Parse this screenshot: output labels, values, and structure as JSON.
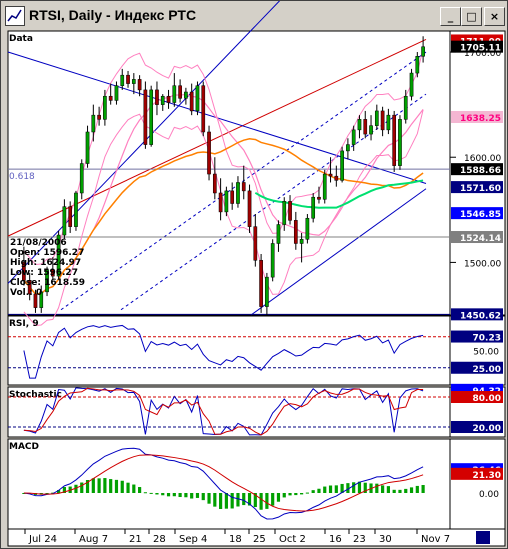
{
  "window": {
    "title": "RTSI, Daily - Индекс РТС",
    "minimize_label": "_",
    "maximize_label": "□",
    "close_label": "×"
  },
  "chart_data": [
    {
      "type": "candlestick",
      "panel": "Data",
      "title": "Data",
      "y_ticks": [
        1700,
        1600,
        1500
      ],
      "price_labels": [
        {
          "text": "1711.00",
          "value": 1711.0,
          "bg": "#d40000",
          "fg": "#ffffff"
        },
        {
          "text": "1705.11",
          "value": 1705.11,
          "bg": "#000000",
          "fg": "#ffffff"
        },
        {
          "text": "1638.25",
          "value": 1638.25,
          "bg": "#f4b6d2",
          "fg": "#ff0080"
        },
        {
          "text": "1588.66",
          "value": 1588.66,
          "bg": "#000000",
          "fg": "#ffffff"
        },
        {
          "text": "1571.60",
          "value": 1571.6,
          "bg": "#000080",
          "fg": "#ffffff"
        },
        {
          "text": "1546.85",
          "value": 1546.85,
          "bg": "#0000ff",
          "fg": "#ffffff"
        },
        {
          "text": "1524.14",
          "value": 1524.14,
          "bg": "#808080",
          "fg": "#ffffff"
        },
        {
          "text": "1450.62",
          "value": 1450.62,
          "bg": "#000080",
          "fg": "#ffffff"
        }
      ],
      "fib_label": "0.618",
      "info": {
        "date": "21/08/2006",
        "open": "Open: 1596.27",
        "high": "High: 1624.97",
        "low": "Low: 1596.27",
        "close": "Close: 1618.59",
        "vol": "Vol.: 0"
      },
      "ohlc": [
        {
          "o": 1500,
          "h": 1515,
          "l": 1478,
          "c": 1483
        },
        {
          "o": 1483,
          "h": 1490,
          "l": 1464,
          "c": 1470
        },
        {
          "o": 1470,
          "h": 1474,
          "l": 1452,
          "c": 1457
        },
        {
          "o": 1457,
          "h": 1478,
          "l": 1452,
          "c": 1472
        },
        {
          "o": 1472,
          "h": 1496,
          "l": 1468,
          "c": 1493
        },
        {
          "o": 1493,
          "h": 1505,
          "l": 1484,
          "c": 1487
        },
        {
          "o": 1487,
          "h": 1530,
          "l": 1484,
          "c": 1526
        },
        {
          "o": 1526,
          "h": 1560,
          "l": 1522,
          "c": 1553
        },
        {
          "o": 1553,
          "h": 1558,
          "l": 1528,
          "c": 1534
        },
        {
          "o": 1534,
          "h": 1568,
          "l": 1530,
          "c": 1566
        },
        {
          "o": 1566,
          "h": 1598,
          "l": 1560,
          "c": 1594
        },
        {
          "o": 1594,
          "h": 1630,
          "l": 1590,
          "c": 1624
        },
        {
          "o": 1624,
          "h": 1650,
          "l": 1615,
          "c": 1640
        },
        {
          "o": 1640,
          "h": 1648,
          "l": 1630,
          "c": 1636
        },
        {
          "o": 1636,
          "h": 1664,
          "l": 1630,
          "c": 1658
        },
        {
          "o": 1658,
          "h": 1670,
          "l": 1650,
          "c": 1654
        },
        {
          "o": 1654,
          "h": 1672,
          "l": 1650,
          "c": 1668
        },
        {
          "o": 1668,
          "h": 1684,
          "l": 1664,
          "c": 1678
        },
        {
          "o": 1678,
          "h": 1682,
          "l": 1666,
          "c": 1670
        },
        {
          "o": 1670,
          "h": 1680,
          "l": 1660,
          "c": 1674
        },
        {
          "o": 1674,
          "h": 1678,
          "l": 1658,
          "c": 1664
        },
        {
          "o": 1664,
          "h": 1672,
          "l": 1608,
          "c": 1612
        },
        {
          "o": 1612,
          "h": 1668,
          "l": 1610,
          "c": 1664
        },
        {
          "o": 1664,
          "h": 1672,
          "l": 1640,
          "c": 1650
        },
        {
          "o": 1650,
          "h": 1660,
          "l": 1644,
          "c": 1658
        },
        {
          "o": 1658,
          "h": 1664,
          "l": 1646,
          "c": 1652
        },
        {
          "o": 1652,
          "h": 1680,
          "l": 1648,
          "c": 1668
        },
        {
          "o": 1668,
          "h": 1674,
          "l": 1652,
          "c": 1656
        },
        {
          "o": 1656,
          "h": 1666,
          "l": 1650,
          "c": 1662
        },
        {
          "o": 1662,
          "h": 1670,
          "l": 1640,
          "c": 1644
        },
        {
          "o": 1644,
          "h": 1672,
          "l": 1640,
          "c": 1668
        },
        {
          "o": 1668,
          "h": 1672,
          "l": 1620,
          "c": 1624
        },
        {
          "o": 1624,
          "h": 1630,
          "l": 1578,
          "c": 1584
        },
        {
          "o": 1584,
          "h": 1600,
          "l": 1560,
          "c": 1566
        },
        {
          "o": 1566,
          "h": 1580,
          "l": 1540,
          "c": 1548
        },
        {
          "o": 1548,
          "h": 1572,
          "l": 1544,
          "c": 1568
        },
        {
          "o": 1568,
          "h": 1576,
          "l": 1550,
          "c": 1556
        },
        {
          "o": 1556,
          "h": 1582,
          "l": 1552,
          "c": 1576
        },
        {
          "o": 1576,
          "h": 1592,
          "l": 1560,
          "c": 1568
        },
        {
          "o": 1568,
          "h": 1574,
          "l": 1528,
          "c": 1534
        },
        {
          "o": 1534,
          "h": 1546,
          "l": 1496,
          "c": 1502
        },
        {
          "o": 1502,
          "h": 1508,
          "l": 1452,
          "c": 1458
        },
        {
          "o": 1458,
          "h": 1490,
          "l": 1450,
          "c": 1486
        },
        {
          "o": 1486,
          "h": 1522,
          "l": 1482,
          "c": 1518
        },
        {
          "o": 1518,
          "h": 1540,
          "l": 1510,
          "c": 1536
        },
        {
          "o": 1536,
          "h": 1562,
          "l": 1530,
          "c": 1558
        },
        {
          "o": 1558,
          "h": 1564,
          "l": 1536,
          "c": 1540
        },
        {
          "o": 1540,
          "h": 1548,
          "l": 1512,
          "c": 1518
        },
        {
          "o": 1518,
          "h": 1528,
          "l": 1500,
          "c": 1522
        },
        {
          "o": 1522,
          "h": 1546,
          "l": 1518,
          "c": 1542
        },
        {
          "o": 1542,
          "h": 1566,
          "l": 1538,
          "c": 1562
        },
        {
          "o": 1562,
          "h": 1572,
          "l": 1556,
          "c": 1560
        },
        {
          "o": 1560,
          "h": 1588,
          "l": 1556,
          "c": 1584
        },
        {
          "o": 1584,
          "h": 1600,
          "l": 1576,
          "c": 1582
        },
        {
          "o": 1582,
          "h": 1592,
          "l": 1572,
          "c": 1578
        },
        {
          "o": 1578,
          "h": 1610,
          "l": 1576,
          "c": 1606
        },
        {
          "o": 1606,
          "h": 1618,
          "l": 1598,
          "c": 1612
        },
        {
          "o": 1612,
          "h": 1630,
          "l": 1606,
          "c": 1626
        },
        {
          "o": 1626,
          "h": 1640,
          "l": 1618,
          "c": 1636
        },
        {
          "o": 1636,
          "h": 1644,
          "l": 1618,
          "c": 1622
        },
        {
          "o": 1622,
          "h": 1640,
          "l": 1616,
          "c": 1630
        },
        {
          "o": 1630,
          "h": 1650,
          "l": 1626,
          "c": 1644
        },
        {
          "o": 1644,
          "h": 1648,
          "l": 1620,
          "c": 1626
        },
        {
          "o": 1626,
          "h": 1646,
          "l": 1622,
          "c": 1640
        },
        {
          "o": 1640,
          "h": 1644,
          "l": 1586,
          "c": 1592
        },
        {
          "o": 1592,
          "h": 1640,
          "l": 1588,
          "c": 1636
        },
        {
          "o": 1636,
          "h": 1664,
          "l": 1632,
          "c": 1658
        },
        {
          "o": 1658,
          "h": 1684,
          "l": 1654,
          "c": 1680
        },
        {
          "o": 1680,
          "h": 1700,
          "l": 1676,
          "c": 1696
        },
        {
          "o": 1696,
          "h": 1715,
          "l": 1690,
          "c": 1705
        }
      ],
      "x_tick_labels": [
        "Jul 24",
        "Aug 7",
        "21",
        "28",
        "Sep 4",
        "18",
        "25",
        "Oct 2",
        "16",
        "23",
        "30",
        "Nov 7"
      ],
      "y_range": [
        1450,
        1720
      ]
    },
    {
      "type": "line",
      "panel": "RSI",
      "title": "RSI, 9",
      "y_ticks": [
        50.0
      ],
      "labels": [
        {
          "text": "70.23",
          "value": 70.23,
          "bg": "#000080",
          "fg": "#ffffff"
        },
        {
          "text": "25.00",
          "value": 25.0,
          "bg": "#000080",
          "fg": "#ffffff"
        }
      ],
      "y_range": [
        0,
        100
      ]
    },
    {
      "type": "line",
      "panel": "Stochastic",
      "title": "Stochastic",
      "labels": [
        {
          "text": "94.32",
          "value": 94.32,
          "bg": "#0000ff",
          "fg": "#ffffff"
        },
        {
          "text": "80.00",
          "value": 80.0,
          "bg": "#d40000",
          "fg": "#ffffff"
        },
        {
          "text": "20.00",
          "value": 20.0,
          "bg": "#000080",
          "fg": "#ffffff"
        }
      ],
      "y_range": [
        0,
        100
      ]
    },
    {
      "type": "line",
      "panel": "MACD",
      "title": "MACD",
      "y_ticks": [
        0.0
      ],
      "labels": [
        {
          "text": "26.46",
          "value": 26.46,
          "bg": "#0000ff",
          "fg": "#ffffff"
        },
        {
          "text": "21.30",
          "value": 21.3,
          "bg": "#d40000",
          "fg": "#ffffff"
        }
      ],
      "y_range": [
        -40,
        60
      ]
    }
  ],
  "colors": {
    "up": "#00a000",
    "down": "#a00000",
    "ma_pink": "#ff80c0",
    "ma_orange": "#ff8000",
    "ma_green": "#00e070",
    "channel_blue": "#0000c0",
    "red_line": "#d00000"
  }
}
